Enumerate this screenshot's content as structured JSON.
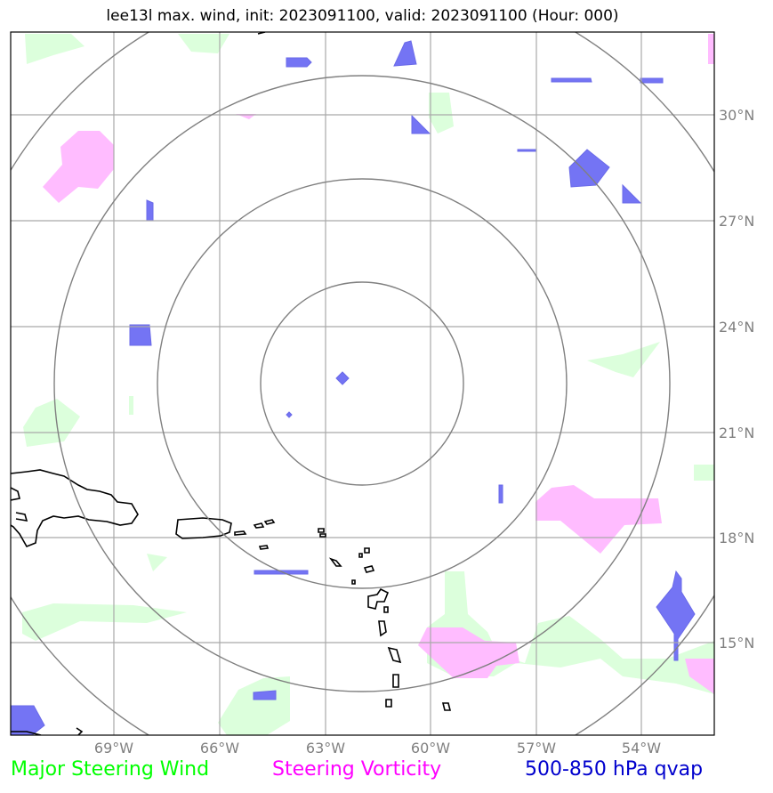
{
  "title": "lee13l max. wind, init: 2023091100, valid: 2023091100 (Hour: 000)",
  "map": {
    "lon_ticks": [
      "69°W",
      "66°W",
      "63°W",
      "60°W",
      "57°W",
      "54°W"
    ],
    "lat_ticks": [
      "30°N",
      "27°N",
      "24°N",
      "21°N",
      "18°N",
      "15°N"
    ],
    "lon_values": [
      -69,
      -66,
      -63,
      -60,
      -57,
      -54
    ],
    "lat_values": [
      30,
      27,
      24,
      21,
      18,
      15
    ],
    "storm_center": {
      "lon": -62.0,
      "lat": 22.5
    },
    "range_rings": 4
  },
  "legend": {
    "wind": "Major Steering Wind",
    "vorticity": "Steering Vorticity",
    "qvap": "500-850 hPa qvap"
  },
  "colors": {
    "wind": "#00ff00",
    "vorticity": "#ff00ff",
    "qvap": "#0000cd",
    "wind_fill": "#dcffdc",
    "vorticity_fill": "#ffbcff",
    "qvap_fill": "#7474f4",
    "grid": "#a9a9a9",
    "ring": "#808080"
  }
}
